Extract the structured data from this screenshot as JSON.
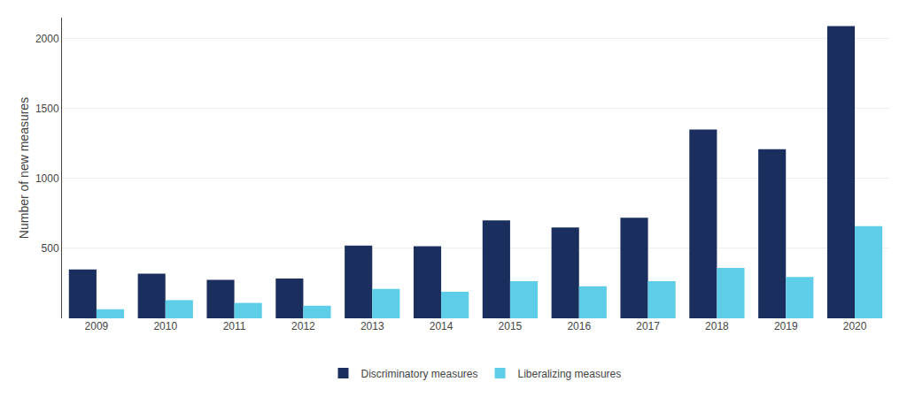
{
  "chart_data": {
    "type": "bar",
    "categories": [
      "2009",
      "2010",
      "2011",
      "2012",
      "2013",
      "2014",
      "2015",
      "2016",
      "2017",
      "2018",
      "2019",
      "2020"
    ],
    "series": [
      {
        "name": "Discriminatory measures",
        "color": "#1b2f5e",
        "values": [
          350,
          320,
          275,
          285,
          520,
          515,
          700,
          650,
          720,
          1350,
          1210,
          2090
        ]
      },
      {
        "name": "Liberalizing measures",
        "color": "#5dcde8",
        "values": [
          65,
          130,
          110,
          90,
          210,
          190,
          265,
          230,
          265,
          360,
          295,
          660
        ]
      }
    ],
    "ylabel": "Number of new measures",
    "ylim": [
      0,
      2150
    ],
    "yticks": [
      {
        "value": 0,
        "label": ""
      },
      500,
      1000,
      1500,
      2000
    ],
    "grid": true,
    "legend": "bottom"
  }
}
